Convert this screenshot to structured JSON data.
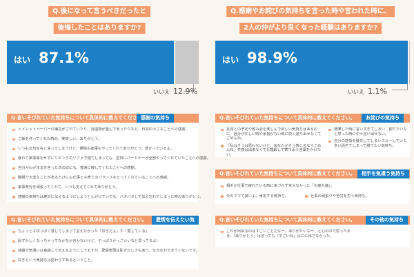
{
  "left": {
    "question_line1": "Q.後になって言うべきだったと",
    "question_line2": "後悔したことはありますか?",
    "yes_label": "はい",
    "yes_pct": "87.1%",
    "yes_value": 87.1,
    "no_label": "いいえ",
    "no_pct": "12.9%",
    "no_value": 12.9
  },
  "right": {
    "question_line1": "Q.感謝やお詫びの気持ちを言った時や言われた時に、",
    "question_line2": "2人の仲がより良くなった経験はありますか?",
    "yes_label": "はい",
    "yes_pct": "98.9%",
    "yes_value": 98.9,
    "no_label": "いいえ",
    "no_pct": "1.1%",
    "no_value": 1.1
  },
  "sections": {
    "s1": {
      "header": "Q.言いそびれていた気持ちについて具体的に教えてください。",
      "tag": "感謝の気持ち",
      "items": [
        "トイレットペーパーの補充がされていたり、洗濯物が畳んであったりなど、日常の小さなことへの感謝。",
        "ご飯を作ってくれた時の、美味しい、ありがとう。",
        "いつも文句を先に言ってしまうけど、掃除も家事もやってくれてありがとう、助かっているよ。",
        "疲れて家事等をせずにリビングのソファで寝てしまっても、翌日にパートナーが全部やってくれていたことへの感謝。",
        "自分がわがままを言った次の日にも、普通に接してくれたことへの感謝。",
        "職場で大変なことがあるたびにも仕事と子育てのバランスをとってくれていることへの感謝。",
        "家事育児を頑張ってくれて、いつも支えてくれてありがとう。",
        "感謝の気持ちは絶対に伝えるようにしようと心がけていても、バタバタして伝え忘れてしまった時のありがとう。"
      ]
    },
    "s2": {
      "header": "Q.言いそびれていた気持ちについて具体的に教えてください。",
      "tag": "愛情を伝えたい気持ち",
      "items": [
        "ちょっと子供っぽく感じてしまって言えなかった「好きだよ」や「愛している」",
        "恥ずかしくなっちゃってなかなか言わないけど、やっぱりかっこいいなと思ってるよ!",
        "感謝や気遣いは意識して伝えるようにしてますが、愛情表現は恥ずかしさもあり、なかなかできていないです。",
        "好きという気持ちは変わらずあるということ。"
      ]
    },
    "s3": {
      "header": "Q.言いそびれていた気持ちについて具体的に教えてください。",
      "tag": "お詫びの気持ち",
      "items_a": [
        "友達との予定や飲み会を楽しんで欲しい気持ちはあるのに、自分が忙しい時や余裕がない時に快く送り出せなくてごめんね。",
        "「私はそうは思わないけど、あなたがそう感じるならごめんね」共感は出来なくても理解して寄り添う言葉をかけたい。"
      ],
      "items_b": [
        "喧嘩した時に言いすぎてしまい、謝りたいなと思った時に中々言い出せない。",
        "自分の感情を優先してしまいスルーしていた言い過ぎてしまって謝りたい気持ち。"
      ]
    },
    "s4": {
      "header": "Q.言いそびれていた気持ちについて具体的に教えてください。",
      "tag": "相手を気遣う気持ち",
      "items_a": [
        "相手が仕事で疲れている時に気づかず言えなかった「お疲れ様」。",
        "今のママで良いよ、肯定する気持ち。"
      ],
      "items_b": [
        "仕事の頑張りや苦労を労う気持ち。"
      ]
    },
    "s5": {
      "header": "Q.言いそびれていた気持ちについて具体的に教えてください。",
      "tag": "その他の気持ち",
      "items": [
        "これが出来るのはすごいことだなー、ありがたいなー、と心の中で思ったまま、「ありがとう」は言っても「すごいね」は口に出さなかった。"
      ]
    }
  },
  "colors": {
    "accent_orange": "#f39a6a",
    "accent_blue": "#1d7fc6",
    "bar_gray": "#c9c9c9",
    "background": "#fbf5ef"
  }
}
